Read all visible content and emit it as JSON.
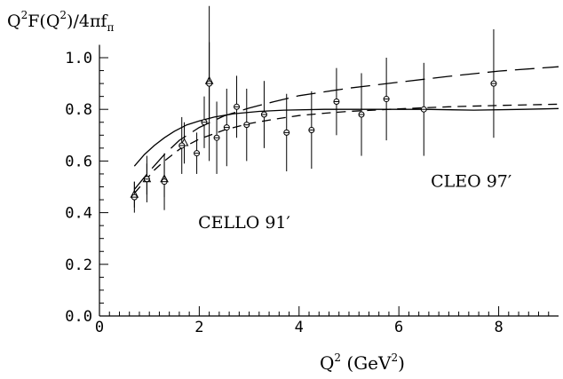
{
  "chart_data": {
    "type": "scatter",
    "ylabel": "Q²F(Q²)/4πf_π",
    "xlabel": "Q² (GeV²)",
    "ylabel_parts": {
      "pre": "Q",
      "sup1": "2",
      "mid": "F(Q",
      "sup2": "2",
      "post": ")/4πf",
      "sub": "π"
    },
    "xlabel_parts": {
      "pre": "Q",
      "sup1": "2",
      "mid": " (GeV",
      "sup2": "2",
      "post": ")"
    },
    "xlim": [
      0,
      9.2
    ],
    "ylim": [
      0,
      1.05
    ],
    "x_ticks": [
      0,
      2,
      4,
      6,
      8
    ],
    "x_tick_labels": [
      "0",
      "2",
      "4",
      "6",
      "8"
    ],
    "y_ticks": [
      0.0,
      0.2,
      0.4,
      0.6,
      0.8,
      1.0
    ],
    "y_tick_labels": [
      "0.0",
      "0.2",
      "0.4",
      "0.6",
      "0.8",
      "1.0"
    ],
    "annotations": [
      {
        "text": "CELLO 91′",
        "x": 2.9,
        "y": 0.34
      },
      {
        "text": "CLEO 97′",
        "x": 7.45,
        "y": 0.5
      }
    ],
    "series": [
      {
        "marker": "triangle",
        "points": [
          {
            "x": 0.7,
            "y": 0.47,
            "err": 0.05
          },
          {
            "x": 0.95,
            "y": 0.53,
            "err": 0.06
          },
          {
            "x": 1.3,
            "y": 0.53,
            "err": 0.07
          },
          {
            "x": 1.7,
            "y": 0.67,
            "err": 0.08
          },
          {
            "x": 2.2,
            "y": 0.91,
            "err": 0.15
          }
        ]
      },
      {
        "marker": "circle",
        "points": [
          {
            "x": 0.7,
            "y": 0.46,
            "err": 0.06
          },
          {
            "x": 0.95,
            "y": 0.53,
            "err": 0.09
          },
          {
            "x": 1.3,
            "y": 0.52,
            "err": 0.11
          },
          {
            "x": 1.65,
            "y": 0.66,
            "err": 0.11
          },
          {
            "x": 1.95,
            "y": 0.63,
            "err": 0.08
          },
          {
            "x": 2.1,
            "y": 0.75,
            "err": 0.1
          },
          {
            "x": 2.2,
            "y": 0.9,
            "err": 0.3
          },
          {
            "x": 2.35,
            "y": 0.69,
            "err": 0.14
          },
          {
            "x": 2.55,
            "y": 0.73,
            "err": 0.15
          },
          {
            "x": 2.75,
            "y": 0.81,
            "err": 0.12
          },
          {
            "x": 2.95,
            "y": 0.74,
            "err": 0.14
          },
          {
            "x": 3.3,
            "y": 0.78,
            "err": 0.13
          },
          {
            "x": 3.75,
            "y": 0.71,
            "err": 0.15
          },
          {
            "x": 4.25,
            "y": 0.72,
            "err": 0.15
          },
          {
            "x": 4.75,
            "y": 0.83,
            "err": 0.13
          },
          {
            "x": 5.25,
            "y": 0.78,
            "err": 0.16
          },
          {
            "x": 5.75,
            "y": 0.84,
            "err": 0.16
          },
          {
            "x": 6.5,
            "y": 0.8,
            "err": 0.18
          },
          {
            "x": 7.9,
            "y": 0.9,
            "err": 0.21
          }
        ]
      }
    ],
    "curves": [
      {
        "style": "solid",
        "points": [
          [
            0.7,
            0.58
          ],
          [
            0.9,
            0.625
          ],
          [
            1.1,
            0.66
          ],
          [
            1.3,
            0.69
          ],
          [
            1.5,
            0.715
          ],
          [
            1.75,
            0.74
          ],
          [
            2.0,
            0.755
          ],
          [
            2.3,
            0.77
          ],
          [
            2.7,
            0.783
          ],
          [
            3.2,
            0.792
          ],
          [
            3.7,
            0.797
          ],
          [
            4.5,
            0.8
          ],
          [
            5.5,
            0.8
          ],
          [
            6.5,
            0.8
          ],
          [
            7.5,
            0.797
          ],
          [
            8.5,
            0.8
          ],
          [
            9.2,
            0.803
          ]
        ]
      },
      {
        "style": "dashed",
        "points": [
          [
            0.7,
            0.475
          ],
          [
            0.9,
            0.52
          ],
          [
            1.1,
            0.565
          ],
          [
            1.3,
            0.6
          ],
          [
            1.6,
            0.645
          ],
          [
            2.0,
            0.685
          ],
          [
            2.5,
            0.72
          ],
          [
            3.0,
            0.745
          ],
          [
            3.5,
            0.762
          ],
          [
            4.0,
            0.776
          ],
          [
            4.5,
            0.785
          ],
          [
            5.0,
            0.792
          ],
          [
            6.0,
            0.802
          ],
          [
            7.0,
            0.81
          ],
          [
            8.0,
            0.815
          ],
          [
            9.2,
            0.82
          ]
        ]
      },
      {
        "style": "longdash",
        "points": [
          [
            0.7,
            0.49
          ],
          [
            1.0,
            0.56
          ],
          [
            1.3,
            0.625
          ],
          [
            1.6,
            0.68
          ],
          [
            2.0,
            0.73
          ],
          [
            2.5,
            0.775
          ],
          [
            3.0,
            0.805
          ],
          [
            3.5,
            0.83
          ],
          [
            4.0,
            0.853
          ],
          [
            5.0,
            0.882
          ],
          [
            6.0,
            0.905
          ],
          [
            7.0,
            0.928
          ],
          [
            8.0,
            0.948
          ],
          [
            9.2,
            0.965
          ]
        ]
      }
    ]
  }
}
